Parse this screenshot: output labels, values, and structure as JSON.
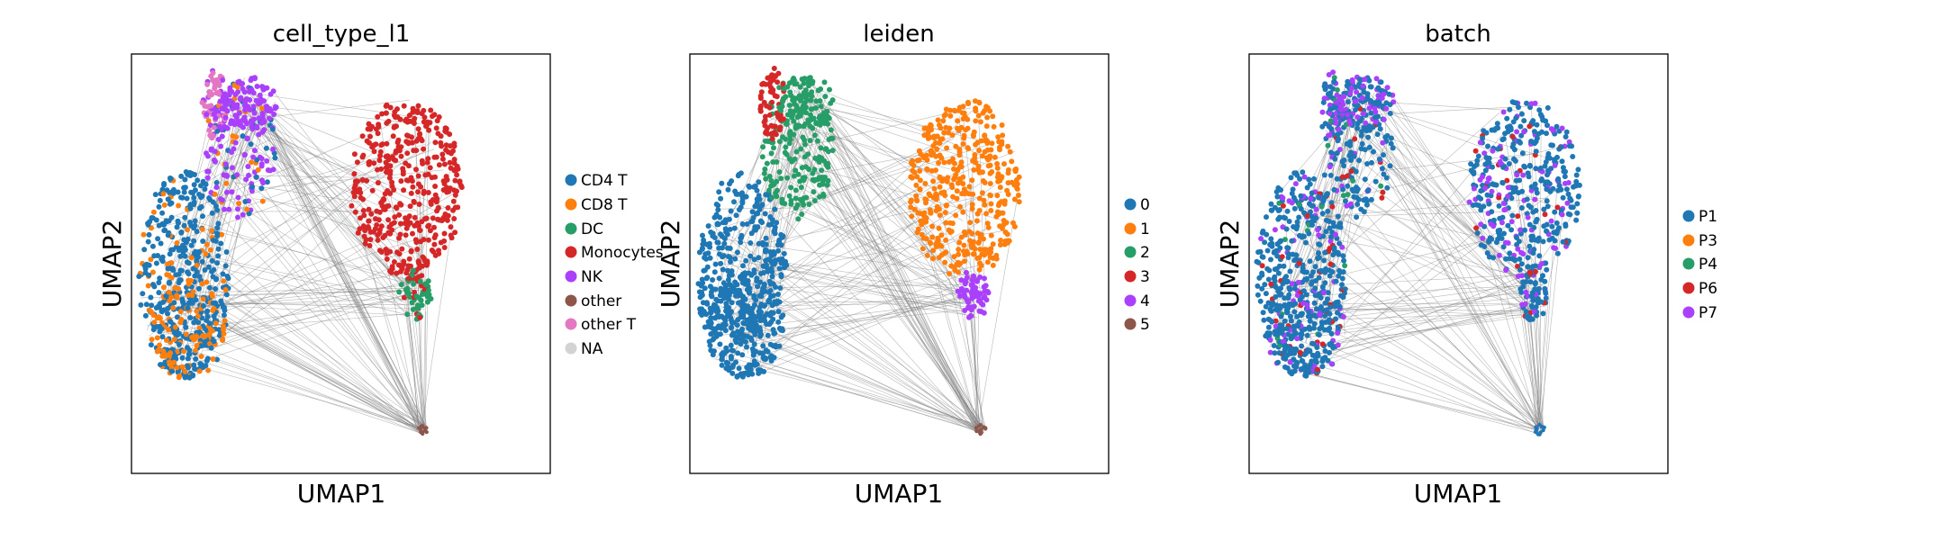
{
  "chart_data": [
    {
      "type": "scatter",
      "title": "cell_type_l1",
      "xlabel": "UMAP1",
      "ylabel": "UMAP2",
      "grid": false,
      "legend_position": "right",
      "legend": [
        {
          "label": "CD4 T",
          "color": "#1f77b4"
        },
        {
          "label": "CD8 T",
          "color": "#ff7f0e"
        },
        {
          "label": "DC",
          "color": "#279e68"
        },
        {
          "label": "Monocytes",
          "color": "#d62728"
        },
        {
          "label": "NK",
          "color": "#aa40fc"
        },
        {
          "label": "other",
          "color": "#8c564b"
        },
        {
          "label": "other T",
          "color": "#e377c2"
        },
        {
          "label": "NA",
          "color": "#d3d3d3"
        }
      ]
    },
    {
      "type": "scatter",
      "title": "leiden",
      "xlabel": "UMAP1",
      "ylabel": "UMAP2",
      "grid": false,
      "legend_position": "right",
      "legend": [
        {
          "label": "0",
          "color": "#1f77b4"
        },
        {
          "label": "1",
          "color": "#ff7f0e"
        },
        {
          "label": "2",
          "color": "#279e68"
        },
        {
          "label": "3",
          "color": "#d62728"
        },
        {
          "label": "4",
          "color": "#aa40fc"
        },
        {
          "label": "5",
          "color": "#8c564b"
        }
      ]
    },
    {
      "type": "scatter",
      "title": "batch",
      "xlabel": "UMAP1",
      "ylabel": "UMAP2",
      "grid": false,
      "legend_position": "right",
      "legend": [
        {
          "label": "P1",
          "color": "#1f77b4"
        },
        {
          "label": "P3",
          "color": "#ff7f0e"
        },
        {
          "label": "P4",
          "color": "#279e68"
        },
        {
          "label": "P6",
          "color": "#d62728"
        },
        {
          "label": "P7",
          "color": "#aa40fc"
        }
      ]
    }
  ],
  "colors": {
    "edge_color": "#808080",
    "background": "#ffffff"
  }
}
